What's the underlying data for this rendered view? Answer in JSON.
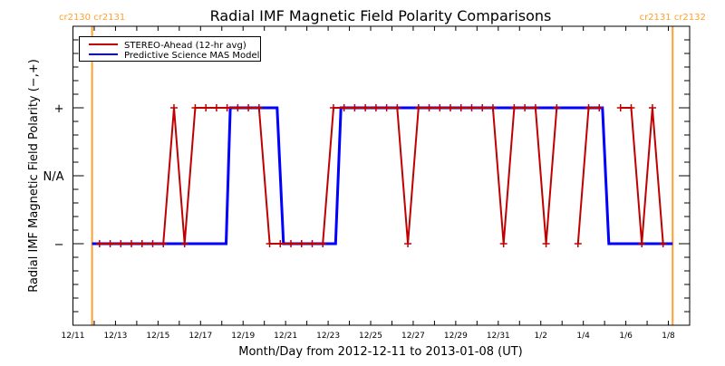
{
  "chart_data": {
    "type": "line",
    "title": "Radial IMF Magnetic Field Polarity Comparisons",
    "xlabel": "Month/Day from 2012-12-11 to 2013-01-08 (UT)",
    "ylabel": "Radial IMF Magnetic Field Polarity (−,+)",
    "x_units": "days since 2012-12-11 00:00 UT",
    "xlim": [
      0,
      29
    ],
    "ylim": [
      -2.2,
      2.2
    ],
    "x_ticks": [
      0,
      2,
      4,
      6,
      8,
      10,
      12,
      14,
      16,
      18,
      20,
      22,
      24,
      26,
      28
    ],
    "x_tick_labels": [
      "12/11",
      "12/13",
      "12/15",
      "12/17",
      "12/19",
      "12/21",
      "12/23",
      "12/25",
      "12/27",
      "12/29",
      "12/31",
      "1/2",
      "1/4",
      "1/6",
      "1/8"
    ],
    "y_ticks": [
      1,
      0,
      -1
    ],
    "y_tick_labels": [
      "+",
      "N/A",
      "−"
    ],
    "legend_position": "top-left",
    "carrington_markers": [
      {
        "x": 0.9,
        "label": "cr2130 cr2131",
        "color": "#ffa030"
      },
      {
        "x": 28.2,
        "label": "cr2131 cr2132",
        "color": "#ffa030"
      }
    ],
    "series": [
      {
        "name": "STEREO-Ahead (12-hr avg)",
        "color": "#c00000",
        "markers": true,
        "points": [
          [
            1.25,
            -1
          ],
          [
            1.75,
            -1
          ],
          [
            2.25,
            -1
          ],
          [
            2.75,
            -1
          ],
          [
            3.25,
            -1
          ],
          [
            3.75,
            -1
          ],
          [
            4.25,
            -1
          ],
          [
            4.75,
            1
          ],
          [
            5.25,
            -1
          ],
          [
            5.75,
            1
          ],
          [
            6.25,
            1
          ],
          [
            6.75,
            1
          ],
          [
            7.25,
            1
          ],
          [
            7.75,
            1
          ],
          [
            8.25,
            1
          ],
          [
            8.75,
            1
          ],
          [
            9.25,
            -1
          ],
          [
            9.75,
            -1
          ],
          [
            10.25,
            -1
          ],
          [
            10.75,
            -1
          ],
          [
            11.25,
            -1
          ],
          [
            11.75,
            -1
          ],
          [
            12.25,
            1
          ],
          [
            12.75,
            1
          ],
          [
            13.25,
            1
          ],
          [
            13.75,
            1
          ],
          [
            14.25,
            1
          ],
          [
            14.75,
            1
          ],
          [
            15.25,
            1
          ],
          [
            15.75,
            -1
          ],
          [
            16.25,
            1
          ],
          [
            16.75,
            1
          ],
          [
            17.25,
            1
          ],
          [
            17.75,
            1
          ],
          [
            18.25,
            1
          ],
          [
            18.75,
            1
          ],
          [
            19.25,
            1
          ],
          [
            19.75,
            1
          ],
          [
            20.25,
            -1
          ],
          [
            20.75,
            1
          ],
          [
            21.25,
            1
          ],
          [
            21.75,
            1
          ],
          [
            22.25,
            -1
          ],
          [
            22.75,
            1
          ],
          [
            23.25,
            null
          ],
          [
            23.75,
            -1
          ],
          [
            24.25,
            1
          ],
          [
            24.75,
            1
          ],
          [
            25.25,
            null
          ],
          [
            25.75,
            1
          ],
          [
            26.25,
            1
          ],
          [
            26.75,
            -1
          ],
          [
            27.25,
            1
          ],
          [
            27.75,
            -1
          ]
        ]
      },
      {
        "name": "Predictive Science MAS Model",
        "color": "#0000ff",
        "markers": false,
        "points": [
          [
            0.9,
            -1
          ],
          [
            7.2,
            -1
          ],
          [
            7.4,
            1
          ],
          [
            9.6,
            1
          ],
          [
            9.9,
            -1
          ],
          [
            12.35,
            -1
          ],
          [
            12.6,
            1
          ],
          [
            24.9,
            1
          ],
          [
            25.2,
            -1
          ],
          [
            28.2,
            -1
          ]
        ]
      }
    ]
  }
}
